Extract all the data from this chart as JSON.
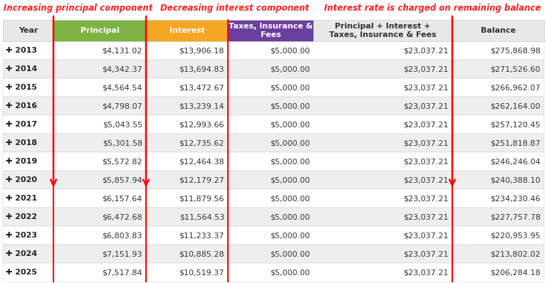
{
  "col_headers": [
    "Year",
    "Principal",
    "Interest",
    "Taxes, Insurance &\nFees",
    "Principal + Interest +\nTaxes, Insurance & Fees",
    "Balance"
  ],
  "col_header_colors": [
    "#e8e8e8",
    "#7cb342",
    "#f5a623",
    "#6b3fa0",
    "#e8e8e8",
    "#e8e8e8"
  ],
  "col_header_text_colors": [
    "#333333",
    "#ffffff",
    "#ffffff",
    "#ffffff",
    "#333333",
    "#333333"
  ],
  "rows": [
    [
      "✚ 2013",
      "$4,131.02",
      "$13,906.18",
      "$5,000.00",
      "$23,037.21",
      "$275,868.98"
    ],
    [
      "✚ 2014",
      "$4,342.37",
      "$13,694.83",
      "$5,000.00",
      "$23,037.21",
      "$271,526.60"
    ],
    [
      "✚ 2015",
      "$4,564.54",
      "$13,472.67",
      "$5,000.00",
      "$23,037.21",
      "$266,962.07"
    ],
    [
      "✚ 2016",
      "$4,798.07",
      "$13,239.14",
      "$5,000.00",
      "$23,037.21",
      "$262,164.00"
    ],
    [
      "✚ 2017",
      "$5,043.55",
      "$12,993.66",
      "$5,000.00",
      "$23,037.21",
      "$257,120.45"
    ],
    [
      "✚ 2018",
      "$5,301.58",
      "$12,735.62",
      "$5,000.00",
      "$23,037.21",
      "$251,818.87"
    ],
    [
      "✚ 2019",
      "$5,572.82",
      "$12,464.38",
      "$5,000.00",
      "$23,037.21",
      "$246,246.04"
    ],
    [
      "✚ 2020",
      "$5,857.94",
      "$12,179.27",
      "$5,000.00",
      "$23,037.21",
      "$240,388.10"
    ],
    [
      "✚ 2021",
      "$6,157.64",
      "$11,879.56",
      "$5,000.00",
      "$23,037.21",
      "$234,230.46"
    ],
    [
      "✚ 2022",
      "$6,472.68",
      "$11,564.53",
      "$5,000.00",
      "$23,037.21",
      "$227,757.78"
    ],
    [
      "✚ 2023",
      "$6,803.83",
      "$11,233.37",
      "$5,000.00",
      "$23,037.21",
      "$220,953.95"
    ],
    [
      "✚ 2024",
      "$7,151.93",
      "$10,885.28",
      "$5,000.00",
      "$23,037.21",
      "$213,802.02"
    ],
    [
      "✚ 2025",
      "$7,517.84",
      "$10,519.37",
      "$5,000.00",
      "$23,037.21",
      "$206,284.18"
    ]
  ],
  "row_bg_even": "#ffffff",
  "row_bg_odd": "#eeeeee",
  "arrow_color": "#ff0000",
  "border_color": "#cccccc",
  "ann1_text": "Increasing principal component",
  "ann2_text": "Decreasing interest component",
  "ann3_text": "Interest rate is charged on remaining balance",
  "ann_color": "#ff2222",
  "ann_fontsize": 8.5,
  "header_fontsize": 8,
  "cell_fontsize": 8,
  "year_fontsize": 8
}
